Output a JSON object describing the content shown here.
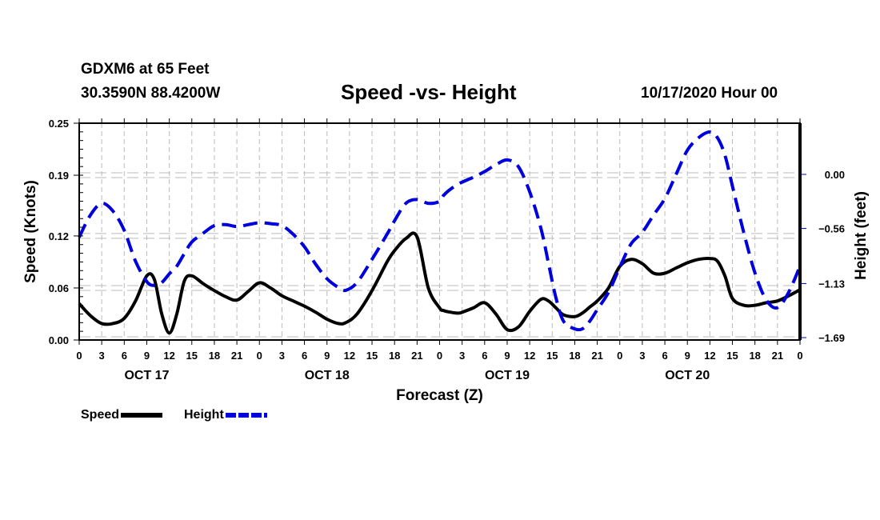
{
  "header": {
    "station": "GDXM6 at 65 Feet",
    "coords": "30.3590N 88.4200W",
    "title": "Speed -vs- Height",
    "datetime": "10/17/2020 Hour 00"
  },
  "legend": {
    "speed_label": "Speed",
    "height_label": "Height"
  },
  "colors": {
    "speed": "#000000",
    "height": "#0000dd",
    "grid": "#bbbbbb"
  },
  "chart_data": {
    "type": "line",
    "title": "Speed -vs- Height",
    "xlabel": "Forecast (Z)",
    "ylabel": "Speed (Knots)",
    "y2label": "Height (feet)",
    "x_unit": "hours from 10/17/2020 00Z",
    "xlim": [
      0,
      96
    ],
    "ylim": [
      0,
      0.25
    ],
    "y2lim": [
      -1.69,
      0.25
    ],
    "grid": true,
    "legend_position": "bottom-left",
    "x_ticks": [
      0,
      3,
      6,
      9,
      12,
      15,
      18,
      21,
      24,
      27,
      30,
      33,
      36,
      39,
      42,
      45,
      48,
      51,
      54,
      57,
      60,
      63,
      66,
      69,
      72,
      75,
      78,
      81,
      84,
      87,
      90,
      93,
      96
    ],
    "x_tick_labels": [
      "0",
      "3",
      "6",
      "9",
      "12",
      "15",
      "18",
      "21",
      "0",
      "3",
      "6",
      "9",
      "12",
      "15",
      "18",
      "21",
      "0",
      "3",
      "6",
      "9",
      "12",
      "15",
      "18",
      "21",
      "0",
      "3",
      "6",
      "9",
      "12",
      "15",
      "18",
      "21",
      "0"
    ],
    "day_labels": [
      {
        "label": "OCT 17",
        "x": 9
      },
      {
        "label": "OCT 18",
        "x": 33
      },
      {
        "label": "OCT 19",
        "x": 57
      },
      {
        "label": "OCT 20",
        "x": 81
      }
    ],
    "y_ticks": [
      0.0,
      0.06,
      0.12,
      0.19,
      0.25
    ],
    "y_tick_labels": [
      "0.00",
      "0.06",
      "0.12",
      "0.19",
      "0.25"
    ],
    "y2_ticks": [
      0.0,
      -0.56,
      -1.13,
      -1.69
    ],
    "y2_tick_labels": [
      "0.00",
      "−0.56",
      "−1.13",
      "−1.69"
    ],
    "x": [
      0,
      1.5,
      3,
      4.5,
      6,
      7.5,
      9,
      10,
      11,
      12,
      13,
      14,
      15,
      16.5,
      18,
      19.5,
      21,
      22.5,
      24,
      25.5,
      27,
      28.5,
      30,
      31.5,
      33,
      34.5,
      35.5,
      37,
      39,
      41,
      42,
      43.5,
      45,
      46.5,
      48,
      48.5,
      49.5,
      50.5,
      51,
      52.5,
      54,
      55.5,
      57,
      58.5,
      60,
      61.5,
      62.5,
      63.5,
      64.5,
      66,
      67,
      68,
      69,
      70.5,
      72,
      73.5,
      75,
      76.5,
      78,
      79.5,
      81,
      82.5,
      84,
      85,
      86,
      87,
      88.5,
      90,
      91.5,
      93,
      94.5,
      96
    ],
    "series": [
      {
        "name": "Speed",
        "axis": "left",
        "style": "solid",
        "values": [
          0.042,
          0.028,
          0.019,
          0.019,
          0.025,
          0.045,
          0.074,
          0.07,
          0.03,
          0.008,
          0.03,
          0.068,
          0.074,
          0.065,
          0.057,
          0.05,
          0.046,
          0.056,
          0.066,
          0.06,
          0.051,
          0.045,
          0.039,
          0.032,
          0.024,
          0.019,
          0.02,
          0.03,
          0.057,
          0.09,
          0.103,
          0.117,
          0.119,
          0.06,
          0.037,
          0.034,
          0.032,
          0.031,
          0.032,
          0.037,
          0.043,
          0.03,
          0.012,
          0.015,
          0.033,
          0.047,
          0.045,
          0.037,
          0.029,
          0.027,
          0.031,
          0.038,
          0.045,
          0.06,
          0.085,
          0.093,
          0.088,
          0.077,
          0.077,
          0.083,
          0.089,
          0.093,
          0.094,
          0.091,
          0.074,
          0.048,
          0.04,
          0.04,
          0.043,
          0.045,
          0.051,
          0.058
        ]
      },
      {
        "name": "Height",
        "axis": "right",
        "style": "dashed",
        "values": [
          -0.65,
          -0.42,
          -0.3,
          -0.38,
          -0.58,
          -0.9,
          -1.11,
          -1.15,
          -1.12,
          -1.03,
          -0.95,
          -0.82,
          -0.7,
          -0.61,
          -0.53,
          -0.52,
          -0.54,
          -0.52,
          -0.5,
          -0.51,
          -0.53,
          -0.62,
          -0.75,
          -0.93,
          -1.08,
          -1.17,
          -1.2,
          -1.12,
          -0.88,
          -0.62,
          -0.48,
          -0.3,
          -0.26,
          -0.3,
          -0.28,
          -0.22,
          -0.15,
          -0.1,
          -0.08,
          -0.03,
          0.03,
          0.1,
          0.15,
          0.08,
          -0.18,
          -0.56,
          -0.92,
          -1.28,
          -1.52,
          -1.6,
          -1.6,
          -1.52,
          -1.4,
          -1.22,
          -0.96,
          -0.72,
          -0.6,
          -0.42,
          -0.25,
          0.0,
          0.25,
          0.38,
          0.44,
          0.38,
          0.2,
          -0.12,
          -0.6,
          -1.02,
          -1.3,
          -1.38,
          -1.22,
          -0.95
        ]
      }
    ]
  }
}
